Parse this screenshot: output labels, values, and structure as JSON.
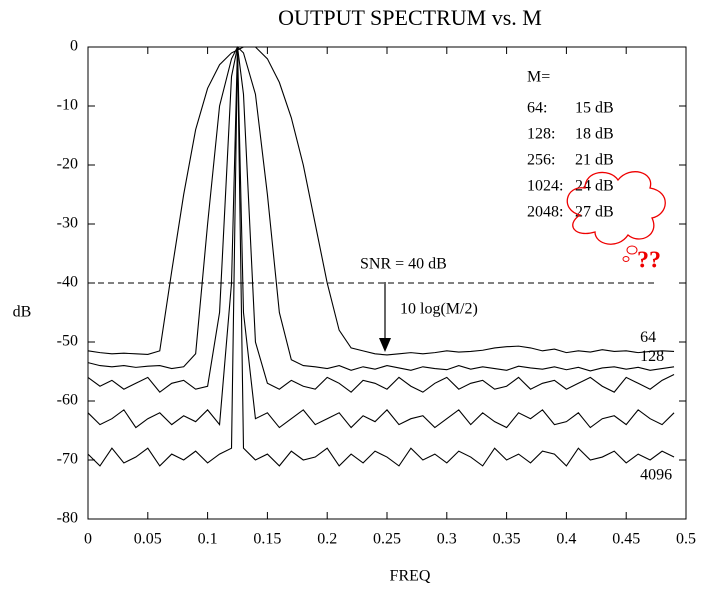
{
  "chart_data": {
    "type": "line",
    "title": "OUTPUT SPECTRUM vs. M",
    "x_label": "FREQ",
    "y_label": "dB",
    "x": [
      0,
      0.01,
      0.02,
      0.03,
      0.04,
      0.05,
      0.06,
      0.07,
      0.08,
      0.09,
      0.1,
      0.11,
      0.12,
      0.125,
      0.13,
      0.14,
      0.15,
      0.16,
      0.17,
      0.18,
      0.19,
      0.2,
      0.21,
      0.22,
      0.23,
      0.24,
      0.25,
      0.26,
      0.27,
      0.28,
      0.29,
      0.3,
      0.31,
      0.32,
      0.33,
      0.34,
      0.35,
      0.36,
      0.37,
      0.38,
      0.39,
      0.4,
      0.41,
      0.42,
      0.43,
      0.44,
      0.45,
      0.46,
      0.47,
      0.48,
      0.49
    ],
    "series": [
      {
        "name": "64",
        "color": "#000000",
        "values": [
          -51.5,
          -51.8,
          -52,
          -51.9,
          -52,
          -52.1,
          -51.5,
          -38,
          -25,
          -14,
          -7,
          -3,
          -1,
          -0.5,
          0,
          0,
          -2,
          -6,
          -12,
          -20,
          -30,
          -40,
          -48,
          -51,
          -51.5,
          -52,
          -52.2,
          -52,
          -51.8,
          -52,
          -51.8,
          -51.5,
          -51.7,
          -51.6,
          -51.4,
          -51,
          -50.8,
          -50.7,
          -51,
          -51.5,
          -51.2,
          -51.8,
          -51.5,
          -51.7,
          -51.3,
          -51.6,
          -51.5,
          -51.8,
          -51.6,
          -51.5,
          -51.6
        ]
      },
      {
        "name": "128",
        "color": "#000000",
        "values": [
          -53.5,
          -54,
          -54.2,
          -54,
          -54.3,
          -54.1,
          -54,
          -54.5,
          -54.2,
          -52,
          -30,
          -10,
          -2,
          0,
          -1,
          -8,
          -25,
          -45,
          -53,
          -54,
          -54.2,
          -54.5,
          -54,
          -54.8,
          -54.2,
          -54.6,
          -54,
          -54.4,
          -54.8,
          -54.2,
          -54.5,
          -54.7,
          -54,
          -54.6,
          -54.2,
          -54.5,
          -54.8,
          -54.1,
          -54.4,
          -54.6,
          -54.2,
          -54.7,
          -54.3,
          -54.9,
          -54.4,
          -54.2,
          -54.6,
          -54.3,
          -54.8,
          -54.5,
          -54.2
        ]
      },
      {
        "color": "#000000",
        "values": [
          -56,
          -57.5,
          -56.5,
          -58,
          -57,
          -56,
          -58.5,
          -57,
          -56.5,
          -58,
          -57.5,
          -45,
          -5,
          0,
          -8,
          -50,
          -57,
          -58,
          -56.5,
          -57.5,
          -58,
          -56,
          -57,
          -58.5,
          -56.5,
          -57,
          -58,
          -56,
          -57.5,
          -58.5,
          -57,
          -56,
          -58,
          -57,
          -56.5,
          -58,
          -57.5,
          -56,
          -58,
          -57,
          -56.5,
          -58,
          -57,
          -56,
          -57.5,
          -58.5,
          -56,
          -57,
          -58,
          -56.5,
          -55.5
        ]
      },
      {
        "color": "#000000",
        "values": [
          -62,
          -64,
          -63,
          -61.5,
          -64.5,
          -63,
          -62,
          -64,
          -62.5,
          -63.5,
          -61.5,
          -64,
          -40,
          0,
          -45,
          -63,
          -62,
          -64.5,
          -63,
          -61.5,
          -64,
          -63,
          -62,
          -64.5,
          -62.5,
          -63.5,
          -61.5,
          -64,
          -63,
          -62.5,
          -64.5,
          -63,
          -61.5,
          -64,
          -62,
          -63.5,
          -64.5,
          -62,
          -63,
          -61.5,
          -64,
          -63.5,
          -62,
          -64.5,
          -63,
          -62.5,
          -64,
          -61.5,
          -63,
          -64,
          -62
        ]
      },
      {
        "name": "4096",
        "color": "#000000",
        "values": [
          -69,
          -71,
          -68,
          -70.5,
          -69.5,
          -68,
          -71,
          -69,
          -70,
          -68.5,
          -70.5,
          -69,
          -68,
          0,
          -68,
          -70,
          -69,
          -71,
          -68.5,
          -70,
          -69.5,
          -68,
          -71,
          -69,
          -70.5,
          -68.5,
          -69.5,
          -71,
          -68,
          -70,
          -69,
          -70.5,
          -68.5,
          -69.5,
          -71,
          -68,
          -70,
          -69,
          -70.5,
          -68.5,
          -69,
          -71,
          -68,
          -70,
          -69.5,
          -68.5,
          -70.5,
          -69,
          -70,
          -68.5,
          -69.5
        ]
      }
    ],
    "xlim": [
      0,
      0.5
    ],
    "ylim": [
      -80,
      0
    ],
    "xticks": [
      0,
      0.05,
      0.1,
      0.15,
      0.2,
      0.25,
      0.3,
      0.35,
      0.4,
      0.45,
      0.5
    ],
    "yticks": [
      0,
      -10,
      -20,
      -30,
      -40,
      -50,
      -60,
      -70,
      -80
    ],
    "grid": false,
    "reference_line": {
      "value": -40,
      "label": "SNR = 40 dB"
    },
    "annotations": [
      "M=",
      "64:",
      "15 dB",
      "128:",
      "18 dB",
      "256:",
      "21 dB",
      "1024:",
      "24 dB",
      "2048:",
      "27 dB",
      "10 log(M/2)",
      "??"
    ]
  }
}
